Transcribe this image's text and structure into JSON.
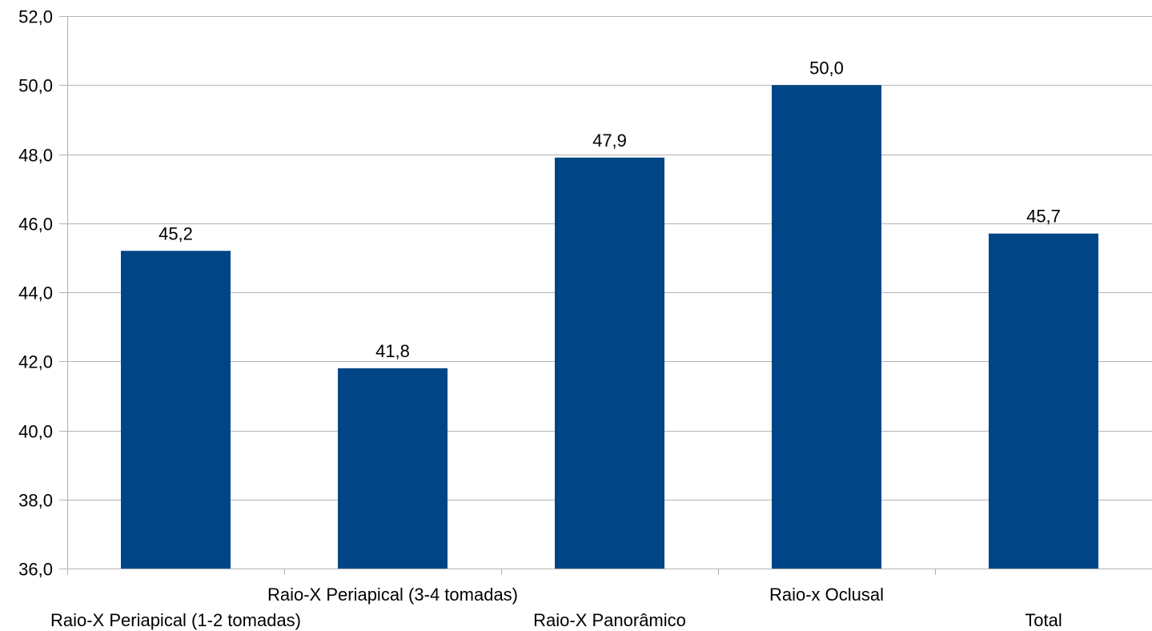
{
  "chart_data": {
    "type": "bar",
    "categories": [
      "Raio-X Periapical (1-2 tomadas)",
      "Raio-X Periapical (3-4 tomadas)",
      "Raio-X Panorâmico",
      "Raio-x Oclusal",
      "Total"
    ],
    "values": [
      45.2,
      41.8,
      47.9,
      50.0,
      45.7
    ],
    "data_labels": [
      "45,2",
      "41,8",
      "47,9",
      "50,0",
      "45,7"
    ],
    "title": "",
    "xlabel": "",
    "ylabel": "",
    "ylim": [
      36,
      52
    ],
    "y_ticks": [
      {
        "value": 36,
        "label": "36,0"
      },
      {
        "value": 38,
        "label": "38,0"
      },
      {
        "value": 40,
        "label": "40,0"
      },
      {
        "value": 42,
        "label": "42,0"
      },
      {
        "value": 44,
        "label": "44,0"
      },
      {
        "value": 46,
        "label": "46,0"
      },
      {
        "value": 48,
        "label": "48,0"
      },
      {
        "value": 50,
        "label": "50,0"
      },
      {
        "value": 52,
        "label": "52,0"
      }
    ],
    "grid": true,
    "legend": "none",
    "colors": {
      "bar": "#004586",
      "grid": "#b3b3b3",
      "axis": "#b3b3b3",
      "text": "#000000"
    }
  }
}
